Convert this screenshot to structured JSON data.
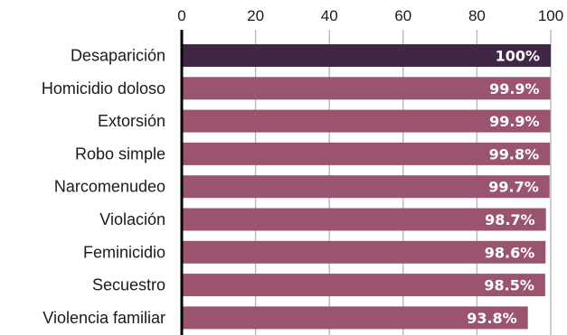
{
  "chart_data": {
    "type": "bar",
    "orientation": "horizontal",
    "categories": [
      "Desaparición",
      "Homicidio doloso",
      "Extorsión",
      "Robo simple",
      "Narcomenudeo",
      "Violación",
      "Feminicidio",
      "Secuestro",
      "Violencia familiar"
    ],
    "values": [
      100,
      99.9,
      99.9,
      99.8,
      99.7,
      98.7,
      98.6,
      98.5,
      93.8
    ],
    "data_labels": [
      "100%",
      "99.9%",
      "99.9%",
      "99.8%",
      "99.7%",
      "98.7%",
      "98.6%",
      "98.5%",
      "93.8%"
    ],
    "x_ticks": [
      "0",
      "20",
      "40",
      "60",
      "80",
      "100"
    ],
    "xlim": [
      0,
      100
    ],
    "title": "",
    "xlabel": "",
    "ylabel": "",
    "grid": "vertical",
    "colors": {
      "highlight": "#3f2745",
      "bar": "#9a5470"
    }
  }
}
